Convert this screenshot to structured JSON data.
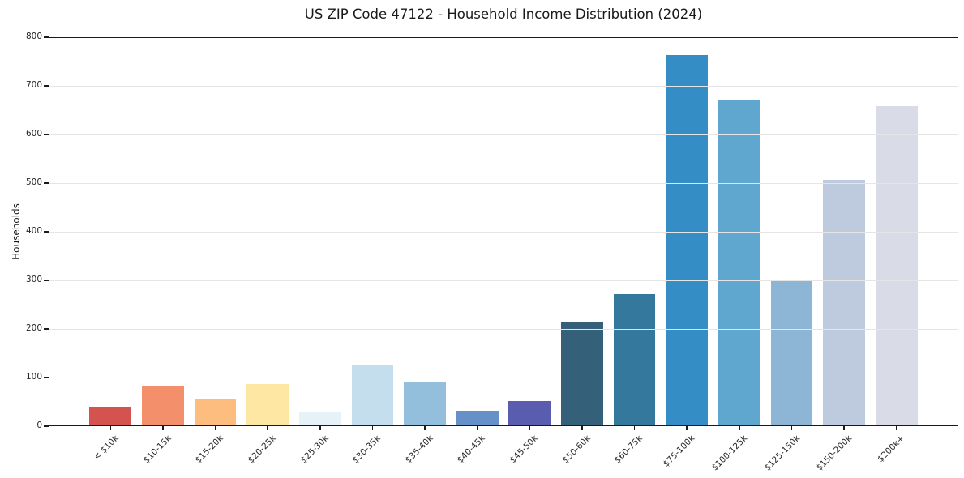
{
  "figure": {
    "background_color": "#ffffff",
    "axis_color": "#1a1a1a",
    "grid_color": "#e5e5e5",
    "text_color": "#262626"
  },
  "chart_data": {
    "type": "bar",
    "title": "US ZIP Code 47122 - Household Income Distribution (2024)",
    "xlabel": "",
    "ylabel": "Households",
    "categories": [
      "< $10k",
      "$10-15k",
      "$15-20k",
      "$20-25k",
      "$25-30k",
      "$30-35k",
      "$35-40k",
      "$40-45k",
      "$45-50k",
      "$50-60k",
      "$60-75k",
      "$75-100k",
      "$100-125k",
      "$125-150k",
      "$150-200k",
      "$200k+"
    ],
    "values": [
      40,
      81,
      55,
      86,
      30,
      127,
      91,
      31,
      52,
      213,
      272,
      764,
      671,
      299,
      506,
      659
    ],
    "bar_colors": [
      "#d4534e",
      "#f3906b",
      "#fcbd7f",
      "#fde7a3",
      "#e5f2f8",
      "#c4deee",
      "#93bfdd",
      "#6591c8",
      "#5a5caf",
      "#35607a",
      "#35789e",
      "#358dc5",
      "#60a7d0",
      "#8db5d6",
      "#becbde",
      "#d9dbe7"
    ],
    "ylim": [
      0,
      800
    ],
    "yticks": [
      0,
      100,
      200,
      300,
      400,
      500,
      600,
      700,
      800
    ],
    "grid": "horizontal gridlines at each y tick, drawn over bars",
    "legend": "none",
    "x_tick_rotation_deg": 45
  }
}
